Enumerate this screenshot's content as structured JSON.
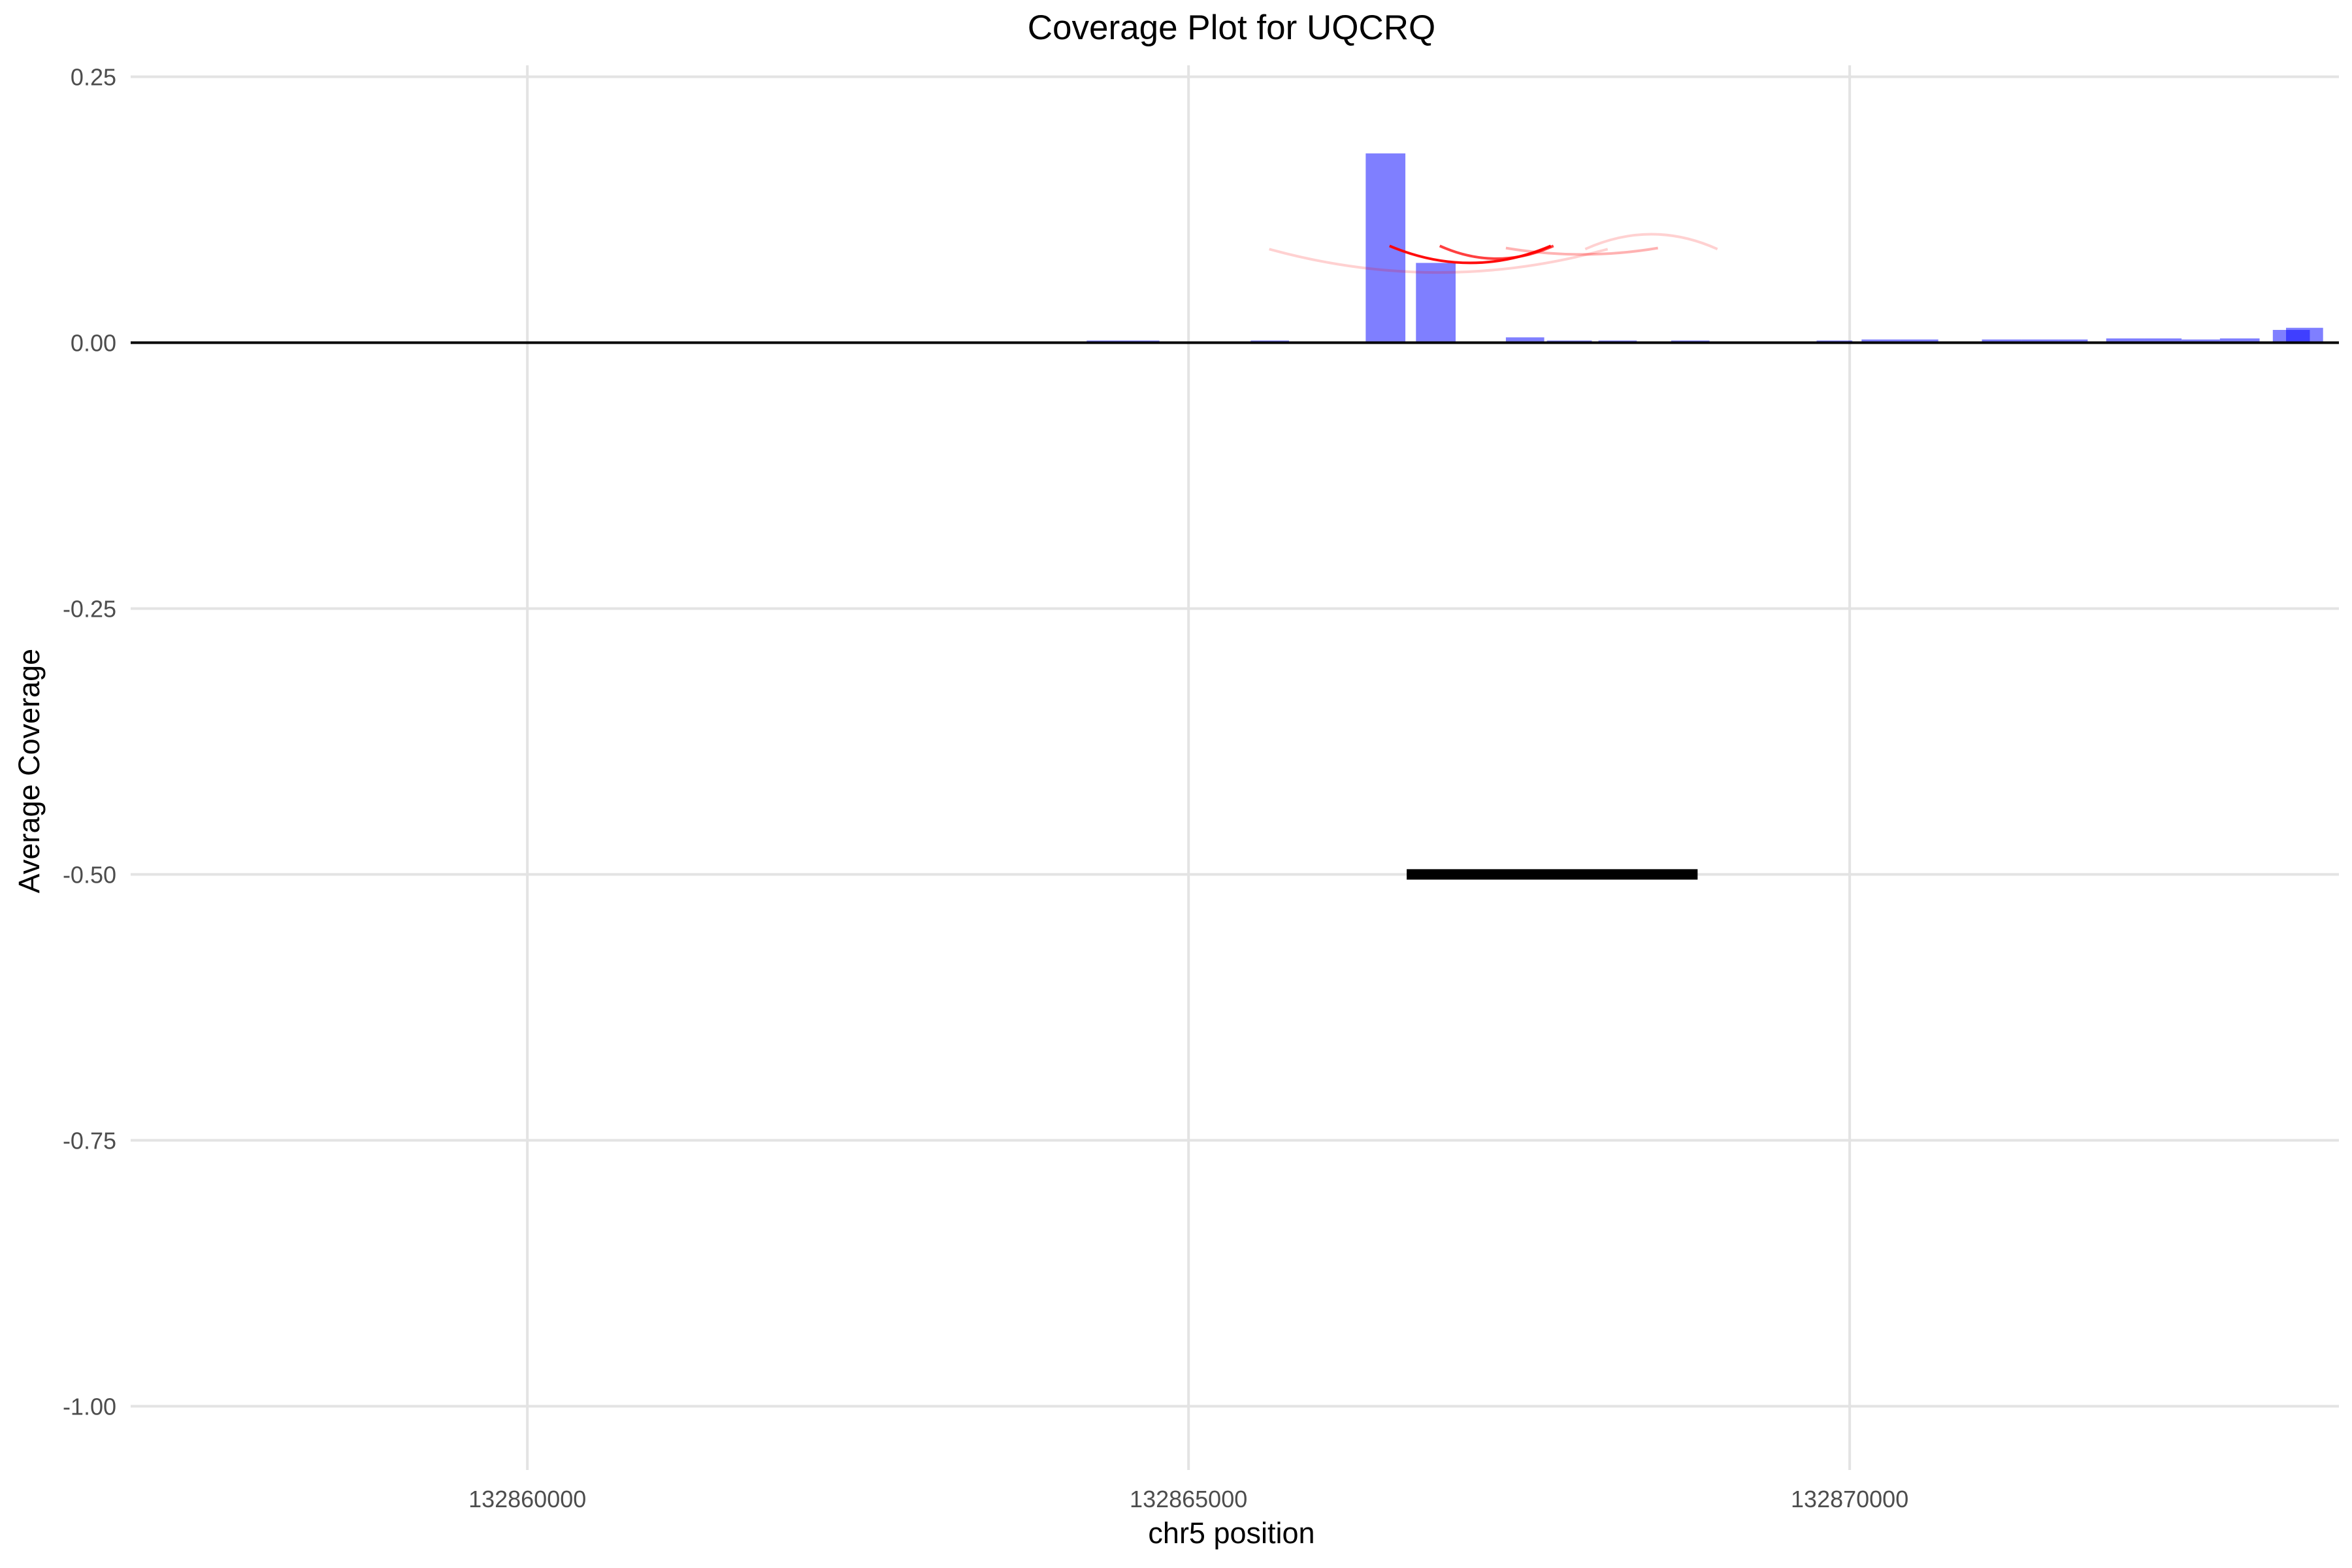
{
  "chart_data": {
    "type": "bar",
    "title": "Coverage Plot for UQCRQ",
    "xlabel": "chr5 position",
    "ylabel": "Average Coverage",
    "xlim": [
      132857000,
      132873700
    ],
    "ylim": [
      -1.06,
      0.27
    ],
    "x_ticks": [
      132860000,
      132865000,
      132870000
    ],
    "x_tick_labels": [
      "132860000",
      "132865000",
      "132870000"
    ],
    "y_ticks": [
      0.25,
      0.0,
      -0.25,
      -0.5,
      -0.75,
      -1.0
    ],
    "y_tick_labels": [
      "0.25",
      "0.00",
      "-0.25",
      "-0.50",
      "-0.75",
      "-1.00"
    ],
    "grid": true,
    "zero_line": true,
    "bar_color": "#0000ff",
    "bar_opacity": 0.5,
    "bars": [
      {
        "start": 132864230,
        "end": 132864500,
        "value": 0.002
      },
      {
        "start": 132864500,
        "end": 132864780,
        "value": 0.002
      },
      {
        "start": 132865470,
        "end": 132865760,
        "value": 0.002
      },
      {
        "start": 132866340,
        "end": 132866640,
        "value": 0.178
      },
      {
        "start": 132866720,
        "end": 132867020,
        "value": 0.075
      },
      {
        "start": 132867400,
        "end": 132867690,
        "value": 0.005
      },
      {
        "start": 132867710,
        "end": 132867880,
        "value": 0.002
      },
      {
        "start": 132867880,
        "end": 132868050,
        "value": 0.002
      },
      {
        "start": 132868100,
        "end": 132868390,
        "value": 0.002
      },
      {
        "start": 132868650,
        "end": 132868940,
        "value": 0.002
      },
      {
        "start": 132869750,
        "end": 132870020,
        "value": 0.002
      },
      {
        "start": 132870090,
        "end": 132870380,
        "value": 0.003
      },
      {
        "start": 132870380,
        "end": 132870670,
        "value": 0.003
      },
      {
        "start": 132871000,
        "end": 132871300,
        "value": 0.003
      },
      {
        "start": 132871300,
        "end": 132871580,
        "value": 0.003
      },
      {
        "start": 132871580,
        "end": 132871800,
        "value": 0.003
      },
      {
        "start": 132871940,
        "end": 132872230,
        "value": 0.004
      },
      {
        "start": 132872230,
        "end": 132872510,
        "value": 0.004
      },
      {
        "start": 132872510,
        "end": 132872800,
        "value": 0.003
      },
      {
        "start": 132872800,
        "end": 132873100,
        "value": 0.004
      },
      {
        "start": 132873200,
        "end": 132873480,
        "value": 0.012
      },
      {
        "start": 132873300,
        "end": 132873580,
        "value": 0.014
      }
    ],
    "arcs": [
      {
        "start": 132865610,
        "end": 132868170,
        "y": 0.088,
        "depth": 0.022,
        "direction": "down",
        "color": "#ff0000",
        "opacity": 0.18
      },
      {
        "start": 132868000,
        "end": 132869000,
        "y": 0.088,
        "depth": 0.014,
        "direction": "up",
        "color": "#ff0000",
        "opacity": 0.18
      },
      {
        "start": 132866520,
        "end": 132867740,
        "y": 0.091,
        "depth": 0.016,
        "direction": "down",
        "color": "#ff0000",
        "opacity": 0.95
      },
      {
        "start": 132866900,
        "end": 132867760,
        "y": 0.091,
        "depth": 0.012,
        "direction": "down",
        "color": "#ff0000",
        "opacity": 0.75
      },
      {
        "start": 132867400,
        "end": 132868550,
        "y": 0.089,
        "depth": 0.006,
        "direction": "down",
        "color": "#ff0000",
        "opacity": 0.3
      }
    ],
    "segments": [
      {
        "start": 132866650,
        "end": 132868850,
        "value": -0.5,
        "color": "#000000"
      }
    ]
  }
}
